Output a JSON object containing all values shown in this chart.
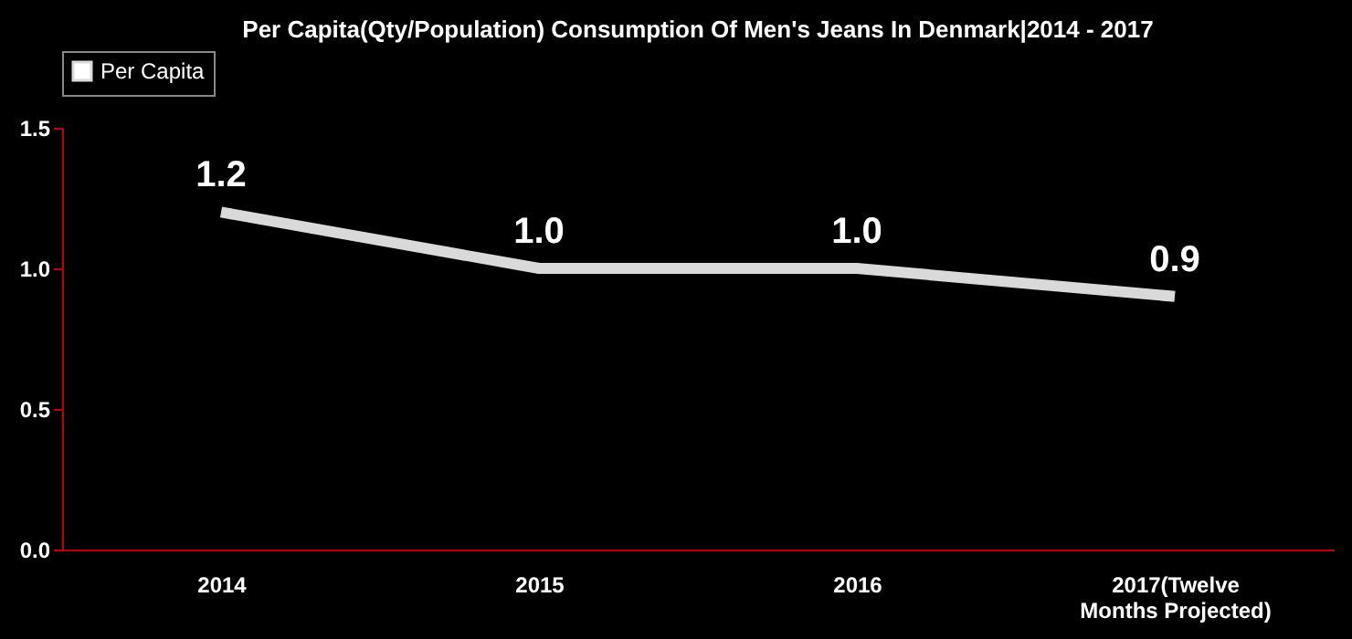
{
  "chart_data": {
    "type": "line",
    "title": "Per Capita(Qty/Population) Consumption Of Men's Jeans In Denmark|2014 - 2017",
    "categories": [
      "2014",
      "2015",
      "2016",
      "2017(Twelve Months Projected)"
    ],
    "series": [
      {
        "name": "Per Capita",
        "color": "#d9d9d9",
        "values": [
          1.2,
          1.0,
          1.0,
          0.9
        ],
        "value_labels": [
          "1.2",
          "1.0",
          "1.0",
          "0.9"
        ]
      }
    ],
    "ylim": [
      0,
      1.5
    ],
    "yticks": [
      {
        "value": 0,
        "label": "0.0"
      },
      0.5,
      {
        "value": 1,
        "label": "1.0"
      },
      1.5
    ],
    "legend": "top",
    "grid": false,
    "marker": "none",
    "line_style": "solid"
  }
}
